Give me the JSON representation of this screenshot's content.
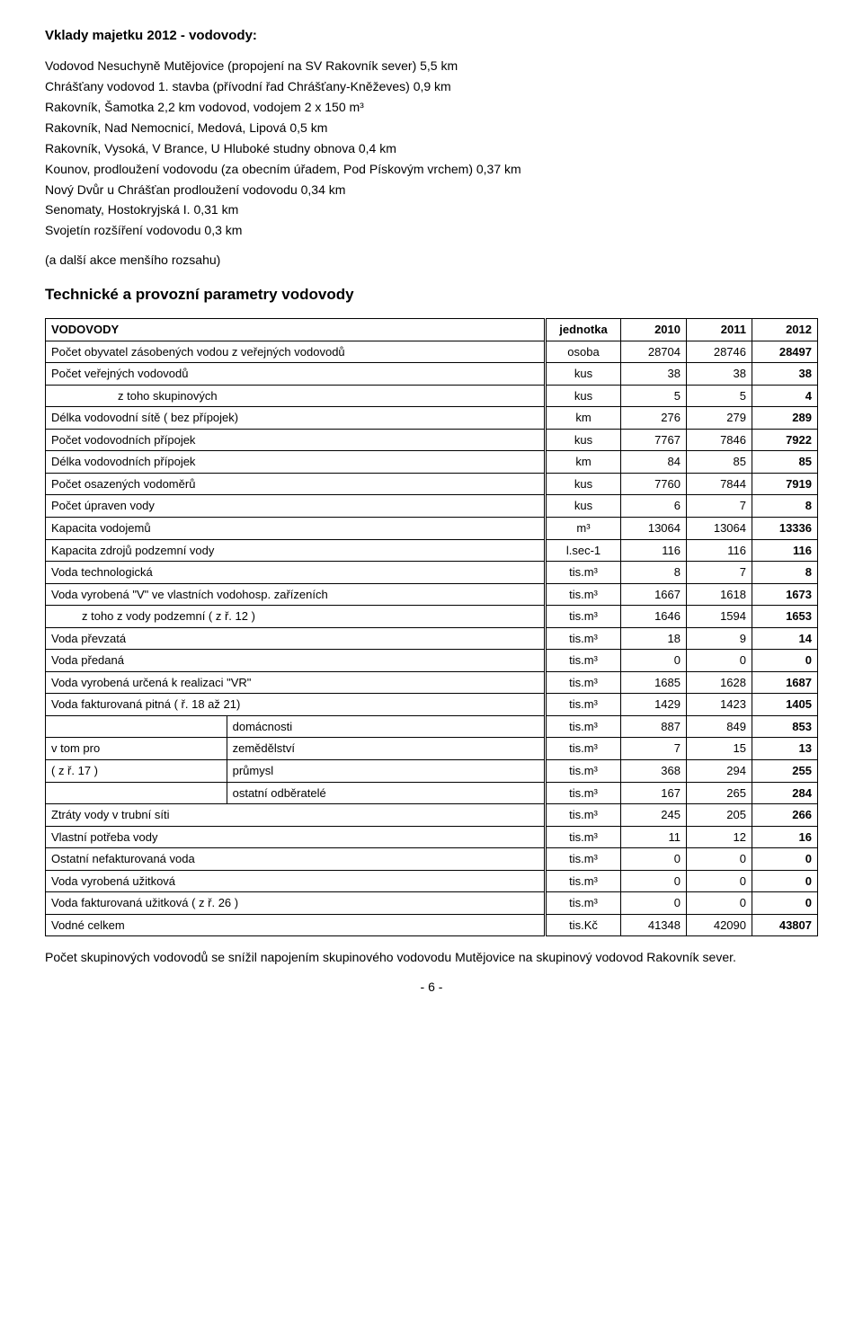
{
  "title": "Vklady majetku 2012 - vodovody:",
  "intro": [
    "Vodovod Nesuchyně Mutějovice (propojení na SV Rakovník sever) 5,5 km",
    "Chrášťany vodovod 1. stavba (přívodní řad Chrášťany-Kněževes) 0,9 km",
    "Rakovník, Šamotka 2,2 km vodovod, vodojem 2 x 150 m³",
    "Rakovník, Nad Nemocnicí, Medová, Lipová 0,5 km",
    "Rakovník, Vysoká, V Brance, U Hluboké studny obnova 0,4 km",
    "Kounov, prodloužení vodovodu (za obecním úřadem, Pod Pískovým vrchem) 0,37 km",
    "Nový Dvůr u Chrášťan prodloužení vodovodu 0,34 km",
    "Senomaty, Hostokryjská I. 0,31 km",
    "Svojetín rozšíření vodovodu 0,3 km"
  ],
  "intro_note": "(a další akce menšího rozsahu)",
  "table_title": "Technické a provozní parametry vodovody",
  "table": {
    "header": [
      "VODOVODY",
      "jednotka",
      "2010",
      "2011",
      "2012"
    ],
    "rows": [
      {
        "label": "Počet obyvatel zásobených vodou z veřejných vodovodů",
        "unit": "osoba",
        "v": [
          "28704",
          "28746",
          "28497"
        ],
        "bold3": true
      },
      {
        "label": "Počet veřejných vodovodů",
        "unit": "kus",
        "v": [
          "38",
          "38",
          "38"
        ],
        "bold3": true
      },
      {
        "label": "z toho skupinových",
        "unit": "kus",
        "v": [
          "5",
          "5",
          "4"
        ],
        "indent": 2,
        "bold3": true
      },
      {
        "label": "Délka vodovodní sítě ( bez přípojek)",
        "unit": "km",
        "v": [
          "276",
          "279",
          "289"
        ],
        "bold3": true
      },
      {
        "label": "Počet vodovodních přípojek",
        "unit": "kus",
        "v": [
          "7767",
          "7846",
          "7922"
        ],
        "bold3": true
      },
      {
        "label": "Délka vodovodních přípojek",
        "unit": "km",
        "v": [
          "84",
          "85",
          "85"
        ],
        "bold3": true
      },
      {
        "label": "Počet osazených vodoměrů",
        "unit": "kus",
        "v": [
          "7760",
          "7844",
          "7919"
        ],
        "bold3": true
      },
      {
        "label": "Počet úpraven vody",
        "unit": "kus",
        "v": [
          "6",
          "7",
          "8"
        ],
        "bold3": true
      },
      {
        "label": "Kapacita vodojemů",
        "unit": "m³",
        "v": [
          "13064",
          "13064",
          "13336"
        ],
        "bold3": true
      },
      {
        "label": "Kapacita zdrojů podzemní vody",
        "unit": "l.sec-1",
        "v": [
          "116",
          "116",
          "116"
        ],
        "bold3": true
      },
      {
        "label": "Voda technologická",
        "unit": "tis.m³",
        "v": [
          "8",
          "7",
          "8"
        ],
        "bold3": true
      },
      {
        "label": "Voda vyrobená \"V\" ve vlastních vodohosp. zařízeních",
        "unit": "tis.m³",
        "v": [
          "1667",
          "1618",
          "1673"
        ],
        "bold3": true
      },
      {
        "label": "z toho z vody podzemní ( z ř. 12 )",
        "unit": "tis.m³",
        "v": [
          "1646",
          "1594",
          "1653"
        ],
        "indent": 1,
        "bold3": true
      },
      {
        "label": "Voda převzatá",
        "unit": "tis.m³",
        "v": [
          "18",
          "9",
          "14"
        ],
        "bold3": true
      },
      {
        "label": "Voda předaná",
        "unit": "tis.m³",
        "v": [
          "0",
          "0",
          "0"
        ],
        "bold3": true
      },
      {
        "label": "Voda vyrobená určená k realizaci \"VR\"",
        "unit": "tis.m³",
        "v": [
          "1685",
          "1628",
          "1687"
        ],
        "bold3": true
      },
      {
        "label": "Voda fakturovaná pitná ( ř. 18 až 21)",
        "unit": "tis.m³",
        "v": [
          "1429",
          "1423",
          "1405"
        ],
        "bold3": true
      }
    ],
    "group": {
      "left1": "v tom pro",
      "left2": "( z ř. 17 )",
      "rows": [
        {
          "label": "domácnosti",
          "unit": "tis.m³",
          "v": [
            "887",
            "849",
            "853"
          ],
          "bold3": true
        },
        {
          "label": "zemědělství",
          "unit": "tis.m³",
          "v": [
            "7",
            "15",
            "13"
          ],
          "bold3": true
        },
        {
          "label": "průmysl",
          "unit": "tis.m³",
          "v": [
            "368",
            "294",
            "255"
          ],
          "bold3": true
        },
        {
          "label": "ostatní odběratelé",
          "unit": "tis.m³",
          "v": [
            "167",
            "265",
            "284"
          ],
          "bold3": true
        }
      ]
    },
    "rows2": [
      {
        "label": "Ztráty vody v trubní síti",
        "unit": "tis.m³",
        "v": [
          "245",
          "205",
          "266"
        ],
        "bold3": true
      },
      {
        "label": "Vlastní potřeba vody",
        "unit": "tis.m³",
        "v": [
          "11",
          "12",
          "16"
        ],
        "bold3": true
      },
      {
        "label": "Ostatní nefakturovaná voda",
        "unit": "tis.m³",
        "v": [
          "0",
          "0",
          "0"
        ],
        "bold3": true
      },
      {
        "label": "Voda vyrobená užitková",
        "unit": "tis.m³",
        "v": [
          "0",
          "0",
          "0"
        ],
        "bold3": true
      },
      {
        "label": "Voda fakturovaná užitková ( z ř. 26 )",
        "unit": "tis.m³",
        "v": [
          "0",
          "0",
          "0"
        ],
        "bold3": true
      },
      {
        "label": "Vodné celkem",
        "unit": "tis.Kč",
        "v": [
          "41348",
          "42090",
          "43807"
        ],
        "bold3": true
      }
    ]
  },
  "footer": "Počet skupinových vodovodů se snížil napojením skupinového vodovodu Mutějovice na skupinový vodovod Rakovník sever.",
  "page": "- 6 -"
}
